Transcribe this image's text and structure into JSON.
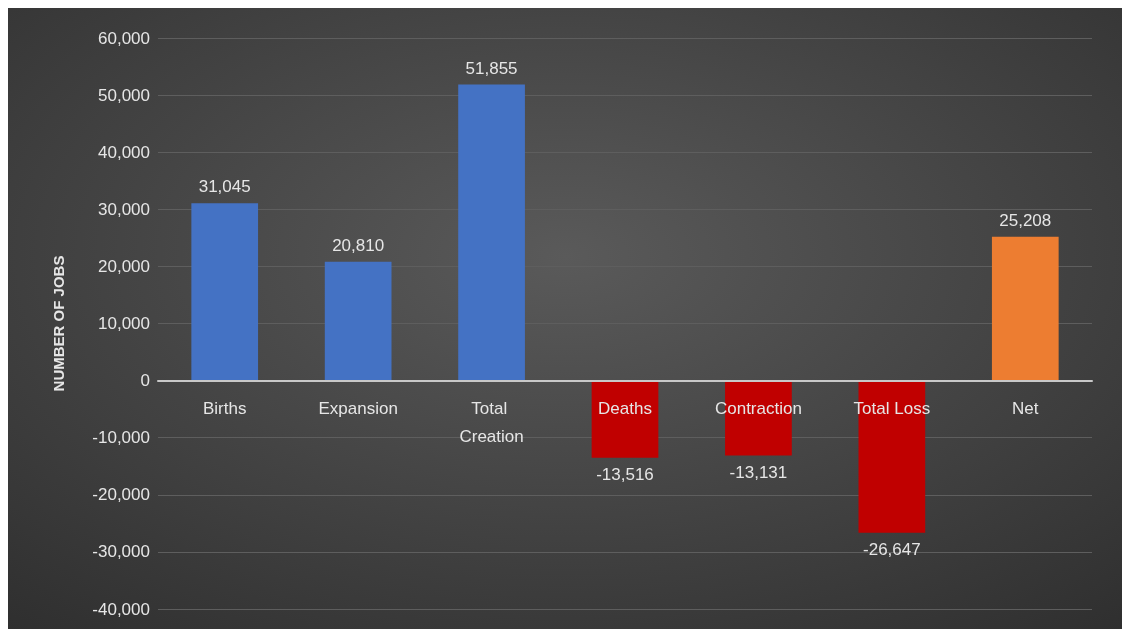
{
  "chart_data": {
    "type": "bar",
    "ylabel": "NUMBER OF JOBS",
    "categories": [
      "Births",
      "Expansion",
      "Total Creation",
      "Deaths",
      "Contraction",
      "Total Loss",
      "Net"
    ],
    "values": [
      31045,
      20810,
      51855,
      -13516,
      -13131,
      -26647,
      25208
    ],
    "colors": [
      "#4472c4",
      "#4472c4",
      "#4472c4",
      "#c00000",
      "#c00000",
      "#c00000",
      "#ed7d31"
    ],
    "value_labels": [
      "31,045",
      "20,810",
      "51,855",
      "-13,516",
      "-13,131",
      "-26,647",
      "25,208"
    ],
    "ylim": [
      -40000,
      60000
    ],
    "yticks": [
      {
        "value": -40000,
        "label": "-40,000"
      },
      {
        "value": -30000,
        "label": "-30,000"
      },
      {
        "value": -20000,
        "label": "-20,000"
      },
      {
        "value": -10000,
        "label": "-10,000"
      },
      {
        "value": 0,
        "label": "0"
      },
      {
        "value": 10000,
        "label": "10,000"
      },
      {
        "value": 20000,
        "label": "20,000"
      },
      {
        "value": 30000,
        "label": "30,000"
      },
      {
        "value": 40000,
        "label": "40,000"
      },
      {
        "value": 50000,
        "label": "50,000"
      },
      {
        "value": 60000,
        "label": "60,000"
      }
    ],
    "grid": true
  }
}
